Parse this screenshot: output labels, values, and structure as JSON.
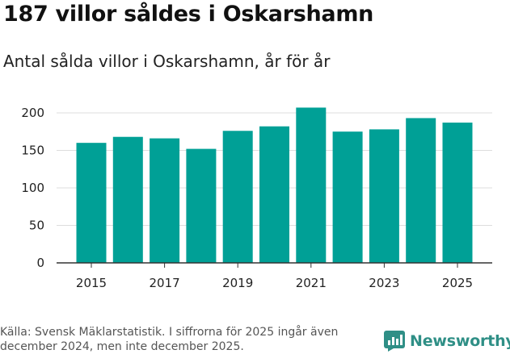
{
  "header": {
    "title": "187 villor såldes i Oskarshamn",
    "subtitle": "Antal sålda villor i Oskarshamn, år för år"
  },
  "footer": {
    "source": "Källa: Svensk Mäklarstatistik. I siffrorna för 2025 ingår även december 2024, men inte december 2025.",
    "brand": "Newsworthy"
  },
  "colors": {
    "bar": "#00a096",
    "brand": "#2f8f86"
  },
  "chart_data": {
    "type": "bar",
    "title": "Antal sålda villor i Oskarshamn, år för år",
    "xlabel": "",
    "ylabel": "",
    "categories": [
      "2015",
      "2016",
      "2017",
      "2018",
      "2019",
      "2020",
      "2021",
      "2022",
      "2023",
      "2024",
      "2025"
    ],
    "values": [
      160,
      168,
      166,
      152,
      176,
      182,
      207,
      175,
      178,
      193,
      187
    ],
    "ylim": [
      0,
      215
    ],
    "yticks": [
      0,
      50,
      100,
      150,
      200
    ],
    "xtick_labels": [
      "2015",
      "2017",
      "2019",
      "2021",
      "2023",
      "2025"
    ],
    "grid": true,
    "legend": "none"
  }
}
